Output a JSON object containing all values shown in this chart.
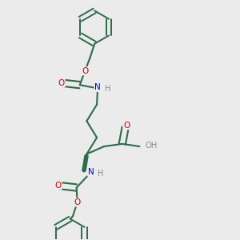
{
  "background_color": "#ebebeb",
  "bond_color": "#2d6b4a",
  "bond_width": 1.5,
  "atom_colors": {
    "O": "#cc0000",
    "N": "#0000cc",
    "H": "#888888",
    "C": "#2d6b4a"
  }
}
